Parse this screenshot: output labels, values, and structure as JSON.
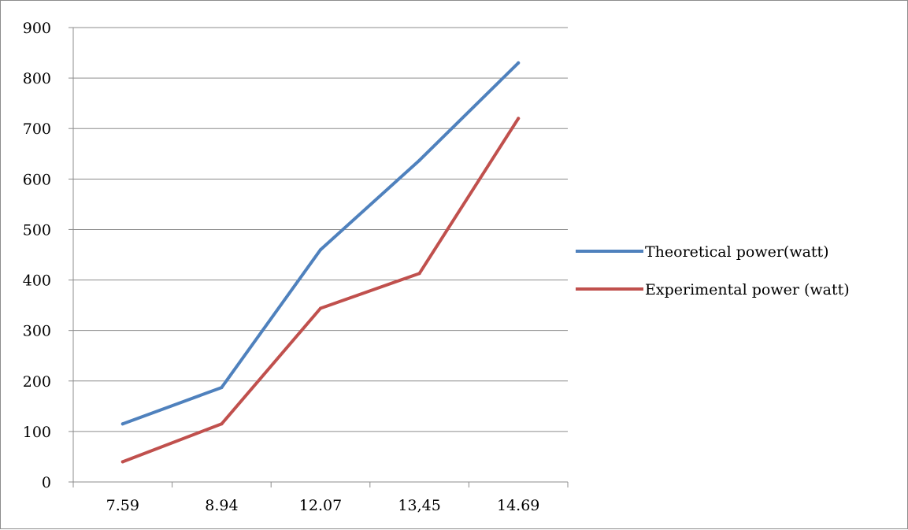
{
  "chart_data": {
    "type": "line",
    "title": "",
    "xlabel": "",
    "ylabel": "",
    "categories": [
      "7.59",
      "8.94",
      "12.07",
      "13,45",
      "14.69"
    ],
    "y_ticks": [
      "0",
      "100",
      "200",
      "300",
      "400",
      "500",
      "600",
      "700",
      "800",
      "900"
    ],
    "ylim": [
      0,
      900
    ],
    "grid": "horizontal",
    "legend_position": "right",
    "series": [
      {
        "name": "Theoretical power(watt)",
        "color": "#4f81bd",
        "values": [
          115,
          187,
          460,
          637,
          830
        ]
      },
      {
        "name": "Experimental power (watt)",
        "color": "#c0504d",
        "values": [
          40,
          115,
          344,
          413,
          720
        ]
      }
    ]
  }
}
